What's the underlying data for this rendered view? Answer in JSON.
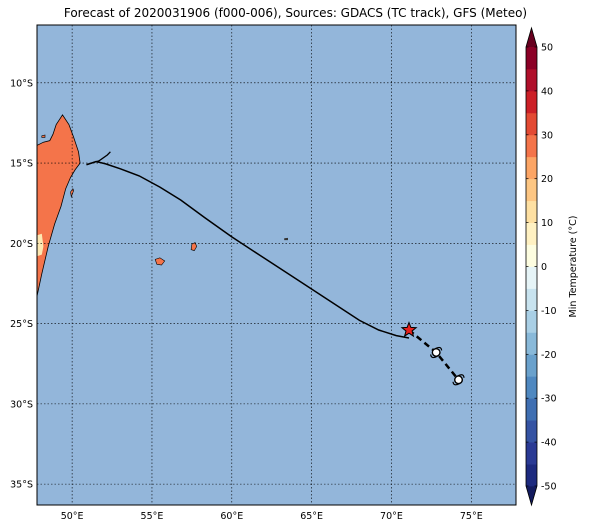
{
  "title": "Forecast of 2020031906 (f000-006), Sources: GDACS (TC track), GFS (Meteo)",
  "map": {
    "ocean_color": "#93b6da",
    "land_color": "#f4744a",
    "land_pale_color": "#fde8b2",
    "lon_ticks": [
      {
        "value": 50,
        "label": "50°E"
      },
      {
        "value": 55,
        "label": "55°E"
      },
      {
        "value": 60,
        "label": "60°E"
      },
      {
        "value": 65,
        "label": "65°E"
      },
      {
        "value": 70,
        "label": "70°E"
      },
      {
        "value": 75,
        "label": "75°E"
      }
    ],
    "lat_ticks": [
      {
        "value": -10,
        "label": "10°S"
      },
      {
        "value": -15,
        "label": "15°S"
      },
      {
        "value": -20,
        "label": "20°S"
      },
      {
        "value": -25,
        "label": "25°S"
      },
      {
        "value": -30,
        "label": "30°S"
      },
      {
        "value": -35,
        "label": "35°S"
      }
    ],
    "extent": {
      "lon_min": 47.8,
      "lon_max": 77.8,
      "lat_min": -36.3,
      "lat_max": -6.4
    },
    "past_track": [
      [
        50.9,
        -15.1
      ],
      [
        51.5,
        -14.9
      ],
      [
        52.1,
        -15.05
      ],
      [
        53.0,
        -15.35
      ],
      [
        54.2,
        -15.8
      ],
      [
        55.5,
        -16.5
      ],
      [
        56.8,
        -17.3
      ],
      [
        58.3,
        -18.4
      ],
      [
        60.0,
        -19.6
      ],
      [
        62.0,
        -20.9
      ],
      [
        64.0,
        -22.2
      ],
      [
        66.0,
        -23.5
      ],
      [
        68.0,
        -24.8
      ],
      [
        69.2,
        -25.4
      ],
      [
        70.3,
        -25.75
      ],
      [
        71.1,
        -25.9
      ]
    ],
    "track_hook": [
      [
        50.9,
        -15.1
      ],
      [
        51.7,
        -14.85
      ],
      [
        52.2,
        -14.5
      ],
      [
        52.4,
        -14.3
      ]
    ],
    "forecast_track": [
      [
        71.1,
        -25.4
      ],
      [
        72.8,
        -26.8
      ],
      [
        74.2,
        -28.5
      ]
    ],
    "current_position": [
      71.1,
      -25.4
    ],
    "forecast_positions": [
      [
        72.8,
        -26.8
      ],
      [
        74.2,
        -28.5
      ]
    ],
    "land": {
      "madagascar": [
        [
          47.8,
          -23.3
        ],
        [
          48.1,
          -21.9
        ],
        [
          48.5,
          -20.2
        ],
        [
          48.9,
          -18.8
        ],
        [
          49.3,
          -17.7
        ],
        [
          49.6,
          -16.6
        ],
        [
          49.9,
          -15.9
        ],
        [
          50.2,
          -15.4
        ],
        [
          50.5,
          -15.0
        ],
        [
          50.4,
          -14.3
        ],
        [
          50.1,
          -13.4
        ],
        [
          49.8,
          -12.6
        ],
        [
          49.4,
          -12.0
        ],
        [
          49.2,
          -12.3
        ],
        [
          49.0,
          -12.6
        ],
        [
          48.8,
          -13.2
        ],
        [
          48.6,
          -13.6
        ],
        [
          48.2,
          -13.7
        ],
        [
          47.8,
          -13.9
        ]
      ],
      "pale_patch": [
        [
          47.8,
          -19.5
        ],
        [
          48.1,
          -19.4
        ],
        [
          48.2,
          -20.2
        ],
        [
          48.1,
          -20.7
        ],
        [
          47.8,
          -20.8
        ]
      ],
      "reunion": [
        [
          55.2,
          -21.0
        ],
        [
          55.5,
          -20.9
        ],
        [
          55.8,
          -21.1
        ],
        [
          55.6,
          -21.35
        ],
        [
          55.3,
          -21.3
        ]
      ],
      "mauritius": [
        [
          57.5,
          -20.05
        ],
        [
          57.7,
          -19.95
        ],
        [
          57.8,
          -20.2
        ],
        [
          57.65,
          -20.45
        ],
        [
          57.45,
          -20.4
        ]
      ],
      "rodrigues": [
        [
          63.3,
          -19.7
        ],
        [
          63.5,
          -19.68
        ],
        [
          63.5,
          -19.78
        ],
        [
          63.3,
          -19.78
        ]
      ],
      "sainte_marie": [
        [
          49.9,
          -16.8
        ],
        [
          50.05,
          -16.6
        ],
        [
          50.1,
          -16.7
        ],
        [
          49.95,
          -17.1
        ]
      ],
      "nosy_be": [
        [
          48.1,
          -13.3
        ],
        [
          48.3,
          -13.25
        ],
        [
          48.3,
          -13.4
        ],
        [
          48.1,
          -13.4
        ]
      ]
    }
  },
  "colorbar": {
    "label": "Min Temperature (°C)",
    "min": -50,
    "max": 50,
    "ticks": [
      -50,
      -40,
      -30,
      -20,
      -10,
      0,
      10,
      20,
      30,
      40,
      50
    ],
    "levels": [
      {
        "from": -50,
        "to": -45,
        "color": "#1d2a7f"
      },
      {
        "from": -45,
        "to": -40,
        "color": "#2a3a94"
      },
      {
        "from": -40,
        "to": -35,
        "color": "#3553a3"
      },
      {
        "from": -35,
        "to": -30,
        "color": "#3f6fb2"
      },
      {
        "from": -30,
        "to": -25,
        "color": "#4f88c0"
      },
      {
        "from": -25,
        "to": -20,
        "color": "#6aa1cc"
      },
      {
        "from": -20,
        "to": -15,
        "color": "#89b9d9"
      },
      {
        "from": -15,
        "to": -10,
        "color": "#a9cfe5"
      },
      {
        "from": -10,
        "to": -5,
        "color": "#c8e3ef"
      },
      {
        "from": -5,
        "to": 0,
        "color": "#e6f4f7"
      },
      {
        "from": 0,
        "to": 5,
        "color": "#fdfde0"
      },
      {
        "from": 5,
        "to": 10,
        "color": "#fff1c2"
      },
      {
        "from": 10,
        "to": 15,
        "color": "#fee0a2"
      },
      {
        "from": 15,
        "to": 20,
        "color": "#fdc683"
      },
      {
        "from": 20,
        "to": 25,
        "color": "#fca565"
      },
      {
        "from": 25,
        "to": 30,
        "color": "#f4744a"
      },
      {
        "from": 30,
        "to": 35,
        "color": "#e34a33"
      },
      {
        "from": 35,
        "to": 40,
        "color": "#cc2027"
      },
      {
        "from": 40,
        "to": 45,
        "color": "#b0102b"
      },
      {
        "from": 45,
        "to": 50,
        "color": "#8b0026"
      }
    ],
    "under_color": "#131b5e",
    "over_color": "#67001f"
  }
}
